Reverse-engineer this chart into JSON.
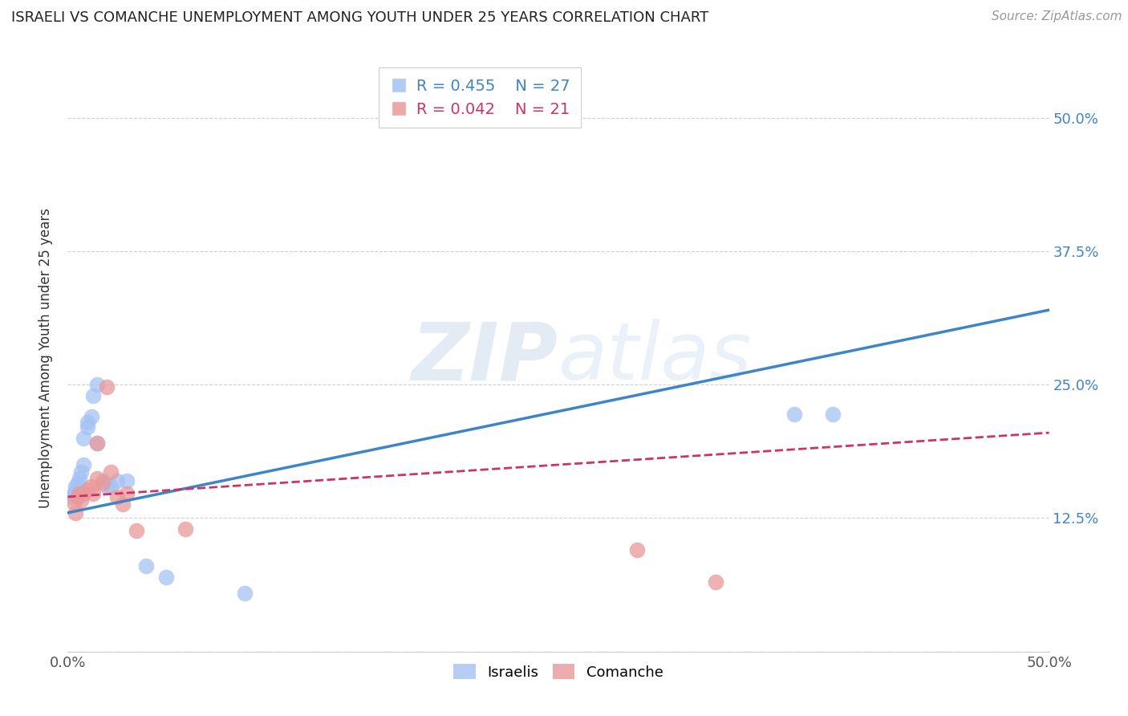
{
  "title": "ISRAELI VS COMANCHE UNEMPLOYMENT AMONG YOUTH UNDER 25 YEARS CORRELATION CHART",
  "source": "Source: ZipAtlas.com",
  "ylabel": "Unemployment Among Youth under 25 years",
  "watermark": "ZIPatlas",
  "xlim": [
    0.0,
    0.5
  ],
  "ylim": [
    0.0,
    0.55
  ],
  "blue_R": "R = 0.455",
  "blue_N": "N = 27",
  "pink_R": "R = 0.042",
  "pink_N": "N = 21",
  "blue_color": "#a4c2f4",
  "pink_color": "#ea9999",
  "blue_line_color": "#3d85c8",
  "pink_line_color": "#cc3366",
  "grid_color": "#d0d0d0",
  "israelis_x": [
    0.002,
    0.003,
    0.004,
    0.004,
    0.005,
    0.005,
    0.005,
    0.006,
    0.007,
    0.008,
    0.008,
    0.01,
    0.01,
    0.012,
    0.013,
    0.015,
    0.015,
    0.018,
    0.02,
    0.022,
    0.025,
    0.03,
    0.04,
    0.05,
    0.09,
    0.37,
    0.39
  ],
  "israelis_y": [
    0.145,
    0.148,
    0.15,
    0.155,
    0.148,
    0.152,
    0.158,
    0.162,
    0.168,
    0.175,
    0.2,
    0.21,
    0.215,
    0.22,
    0.24,
    0.25,
    0.195,
    0.16,
    0.155,
    0.155,
    0.16,
    0.16,
    0.08,
    0.07,
    0.055,
    0.222,
    0.222
  ],
  "comanche_x": [
    0.003,
    0.004,
    0.005,
    0.006,
    0.007,
    0.008,
    0.01,
    0.012,
    0.013,
    0.015,
    0.015,
    0.018,
    0.02,
    0.022,
    0.025,
    0.028,
    0.03,
    0.035,
    0.06,
    0.29,
    0.33
  ],
  "comanche_y": [
    0.14,
    0.13,
    0.145,
    0.148,
    0.142,
    0.148,
    0.152,
    0.155,
    0.148,
    0.162,
    0.195,
    0.158,
    0.248,
    0.168,
    0.145,
    0.138,
    0.148,
    0.113,
    0.115,
    0.095,
    0.065
  ],
  "legend_labels": [
    "Israelis",
    "Comanche"
  ]
}
